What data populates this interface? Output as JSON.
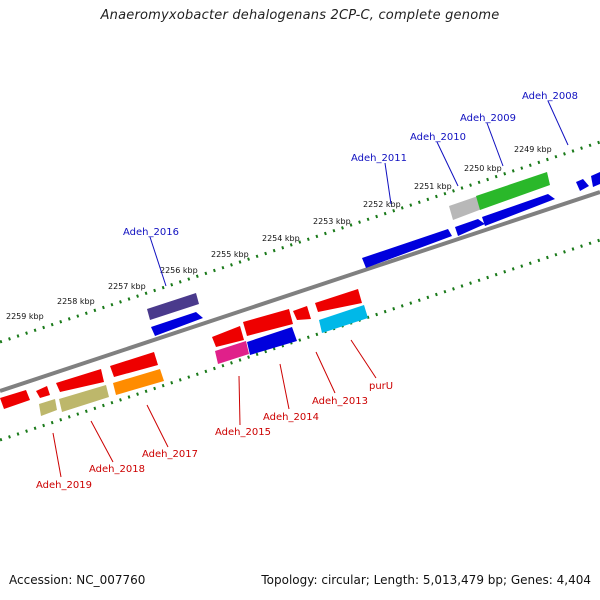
{
  "title": "Anaeromyxobacter dehalogenans 2CP-C, complete genome",
  "footer": {
    "accession": "Accession: NC_007760",
    "summary": "Topology: circular; Length: 5,013,479 bp; Genes: 4,404"
  },
  "colors": {
    "backbone": "#808080",
    "ticks": "#1a7a1a",
    "label_forward": "#1010c0",
    "label_reverse": "#cc0000"
  },
  "kbp_labels": [
    "2249 kbp",
    "2250 kbp",
    "2251 kbp",
    "2252 kbp",
    "2253 kbp",
    "2254 kbp",
    "2255 kbp",
    "2256 kbp",
    "2257 kbp",
    "2258 kbp",
    "2259 kbp"
  ],
  "forward_genes": [
    "Adeh_2008",
    "Adeh_2009",
    "Adeh_2010",
    "Adeh_2011",
    "Adeh_2016"
  ],
  "reverse_genes": [
    "purU",
    "Adeh_2013",
    "Adeh_2014",
    "Adeh_2015",
    "Adeh_2017",
    "Adeh_2018",
    "Adeh_2019"
  ]
}
